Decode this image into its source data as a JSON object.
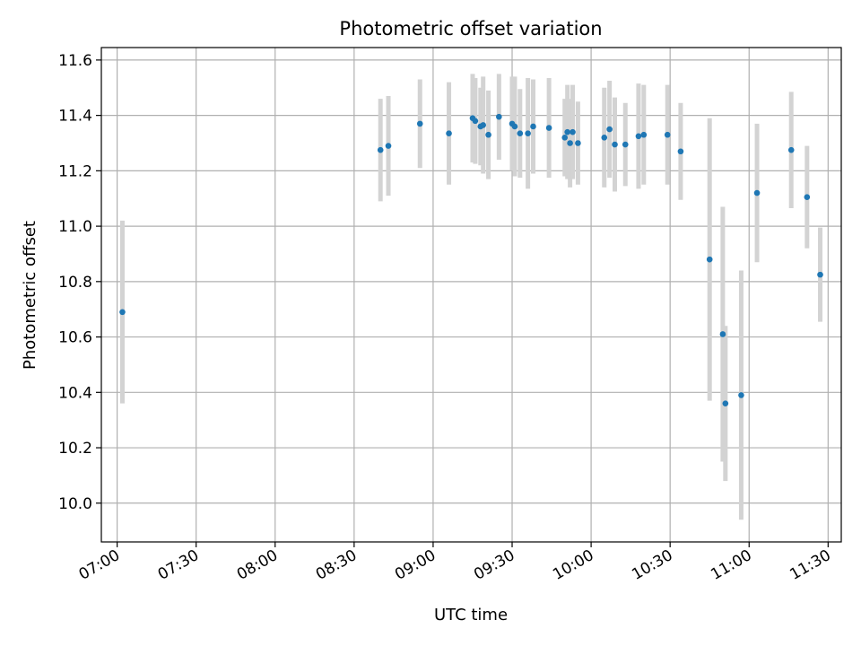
{
  "chart_data": {
    "type": "scatter",
    "title": "Photometric offset variation",
    "xlabel": "UTC time",
    "ylabel": "Photometric offset",
    "x_ticks": [
      "07:00",
      "07:30",
      "08:00",
      "08:30",
      "09:00",
      "09:30",
      "10:00",
      "10:30",
      "11:00",
      "11:30"
    ],
    "y_ticks": [
      "10.0",
      "10.2",
      "10.4",
      "10.6",
      "10.8",
      "11.0",
      "11.2",
      "11.4",
      "11.6"
    ],
    "xlim": [
      "06:54",
      "11:35"
    ],
    "ylim": [
      9.86,
      11.645
    ],
    "grid": true,
    "colors": {
      "point": "#1f77b4",
      "errorbar": "#d3d3d3",
      "grid": "#b0b0b0"
    },
    "series": [
      {
        "points": [
          {
            "x": "07:02",
            "y": 10.69,
            "err": 0.33
          },
          {
            "x": "08:40",
            "y": 11.275,
            "err": 0.185
          },
          {
            "x": "08:43",
            "y": 11.29,
            "err": 0.18
          },
          {
            "x": "08:55",
            "y": 11.37,
            "err": 0.16
          },
          {
            "x": "09:06",
            "y": 11.335,
            "err": 0.185
          },
          {
            "x": "09:15",
            "y": 11.39,
            "err": 0.16
          },
          {
            "x": "09:16",
            "y": 11.38,
            "err": 0.155
          },
          {
            "x": "09:18",
            "y": 11.36,
            "err": 0.14
          },
          {
            "x": "09:19",
            "y": 11.365,
            "err": 0.175
          },
          {
            "x": "09:21",
            "y": 11.33,
            "err": 0.16
          },
          {
            "x": "09:25",
            "y": 11.395,
            "err": 0.155
          },
          {
            "x": "09:30",
            "y": 11.37,
            "err": 0.17
          },
          {
            "x": "09:31",
            "y": 11.36,
            "err": 0.18
          },
          {
            "x": "09:33",
            "y": 11.335,
            "err": 0.16
          },
          {
            "x": "09:36",
            "y": 11.335,
            "err": 0.2
          },
          {
            "x": "09:38",
            "y": 11.36,
            "err": 0.17
          },
          {
            "x": "09:44",
            "y": 11.355,
            "err": 0.18
          },
          {
            "x": "09:50",
            "y": 11.32,
            "err": 0.14
          },
          {
            "x": "09:51",
            "y": 11.34,
            "err": 0.17
          },
          {
            "x": "09:52",
            "y": 11.3,
            "err": 0.16
          },
          {
            "x": "09:53",
            "y": 11.34,
            "err": 0.17
          },
          {
            "x": "09:55",
            "y": 11.3,
            "err": 0.15
          },
          {
            "x": "10:05",
            "y": 11.32,
            "err": 0.18
          },
          {
            "x": "10:07",
            "y": 11.35,
            "err": 0.175
          },
          {
            "x": "10:09",
            "y": 11.295,
            "err": 0.17
          },
          {
            "x": "10:13",
            "y": 11.295,
            "err": 0.15
          },
          {
            "x": "10:18",
            "y": 11.325,
            "err": 0.19
          },
          {
            "x": "10:20",
            "y": 11.33,
            "err": 0.18
          },
          {
            "x": "10:29",
            "y": 11.33,
            "err": 0.18
          },
          {
            "x": "10:34",
            "y": 11.27,
            "err": 0.175
          },
          {
            "x": "10:45",
            "y": 10.88,
            "err": 0.51
          },
          {
            "x": "10:50",
            "y": 10.61,
            "err": 0.46
          },
          {
            "x": "10:51",
            "y": 10.36,
            "err": 0.28
          },
          {
            "x": "10:57",
            "y": 10.39,
            "err": 0.45
          },
          {
            "x": "11:03",
            "y": 11.12,
            "err": 0.25
          },
          {
            "x": "11:16",
            "y": 11.275,
            "err": 0.21
          },
          {
            "x": "11:22",
            "y": 11.105,
            "err": 0.185
          },
          {
            "x": "11:27",
            "y": 10.825,
            "err": 0.17
          }
        ]
      }
    ]
  }
}
